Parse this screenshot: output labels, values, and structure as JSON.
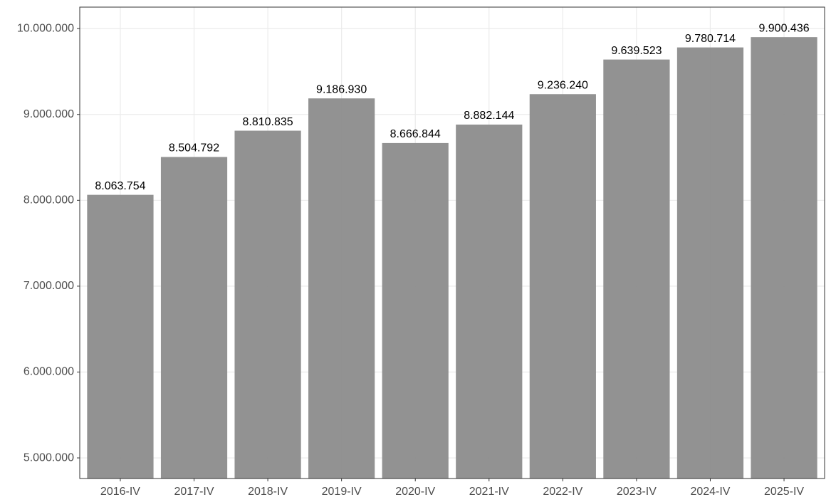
{
  "chart_data": {
    "type": "bar",
    "categories": [
      "2016-IV",
      "2017-IV",
      "2018-IV",
      "2019-IV",
      "2020-IV",
      "2021-IV",
      "2022-IV",
      "2023-IV",
      "2024-IV",
      "2025-IV"
    ],
    "values": [
      8063754,
      8504792,
      8810835,
      9186930,
      8666844,
      8882144,
      9236240,
      9639523,
      9780714,
      9900436
    ],
    "value_labels": [
      "8.063.754",
      "8.504.792",
      "8.810.835",
      "9.186.930",
      "8.666.844",
      "8.882.144",
      "9.236.240",
      "9.639.523",
      "9.780.714",
      "9.900.436"
    ],
    "color": "#8c8c8c",
    "ylim": [
      4760000,
      10250000
    ],
    "yticks": [
      {
        "value": 5000000,
        "label": "5.000.000"
      },
      {
        "value": 6000000,
        "label": "6.000.000"
      },
      {
        "value": 7000000,
        "label": "7.000.000"
      },
      {
        "value": 8000000,
        "label": "8.000.000"
      },
      {
        "value": 9000000,
        "label": "9.000.000"
      },
      {
        "value": 10000000,
        "label": "10.000.000"
      }
    ],
    "grid": true
  }
}
